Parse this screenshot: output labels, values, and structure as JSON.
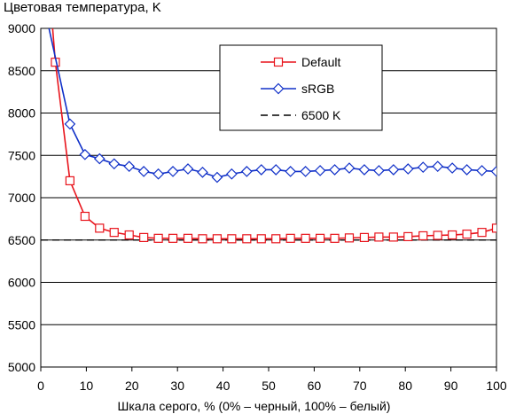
{
  "chart_data": {
    "type": "line",
    "title": "Цветовая температура, K",
    "xlabel": "Шкала серого, % (0% – черный, 100% – белый)",
    "ylabel": "",
    "xlim": [
      0,
      100
    ],
    "ylim": [
      5000,
      9000
    ],
    "xticks": [
      "0",
      "10",
      "20",
      "30",
      "40",
      "50",
      "60",
      "70",
      "80",
      "90",
      "100"
    ],
    "yticks": [
      "5000",
      "5500",
      "6000",
      "6500",
      "7000",
      "7500",
      "8000",
      "8500",
      "9000"
    ],
    "grid": "horizontal",
    "legend_position": "top-right",
    "x": [
      3.2,
      6.4,
      9.7,
      12.9,
      16.1,
      19.4,
      22.6,
      25.8,
      29,
      32.3,
      35.5,
      38.7,
      41.9,
      45.2,
      48.4,
      51.6,
      54.8,
      58.1,
      61.3,
      64.5,
      67.7,
      71,
      74.2,
      77.4,
      80.6,
      83.9,
      87.1,
      90.3,
      93.5,
      96.8,
      100
    ],
    "series": [
      {
        "name": "Default",
        "color": "#e8141c",
        "marker": "square",
        "lead_in": [
          2.6,
          9000
        ],
        "values": [
          8600,
          7200,
          6780,
          6640,
          6590,
          6560,
          6530,
          6520,
          6520,
          6520,
          6515,
          6515,
          6515,
          6515,
          6515,
          6515,
          6520,
          6520,
          6520,
          6520,
          6525,
          6530,
          6535,
          6535,
          6540,
          6550,
          6555,
          6560,
          6570,
          6590,
          6640
        ]
      },
      {
        "name": "sRGB",
        "color": "#1030c8",
        "marker": "diamond",
        "lead_in": [
          1.8,
          9000
        ],
        "values": [
          null,
          7870,
          7510,
          7460,
          7400,
          7370,
          7310,
          7280,
          7310,
          7340,
          7300,
          7240,
          7280,
          7310,
          7330,
          7330,
          7310,
          7310,
          7320,
          7330,
          7350,
          7330,
          7320,
          7330,
          7340,
          7360,
          7370,
          7350,
          7330,
          7320,
          7310
        ]
      },
      {
        "name": "6500 K",
        "color": "#000000",
        "dashed": true,
        "values": [
          6500,
          6500,
          6500,
          6500,
          6500,
          6500,
          6500,
          6500,
          6500,
          6500,
          6500,
          6500,
          6500,
          6500,
          6500,
          6500,
          6500,
          6500,
          6500,
          6500,
          6500,
          6500,
          6500,
          6500,
          6500,
          6500,
          6500,
          6500,
          6500,
          6500,
          6500
        ]
      }
    ]
  }
}
